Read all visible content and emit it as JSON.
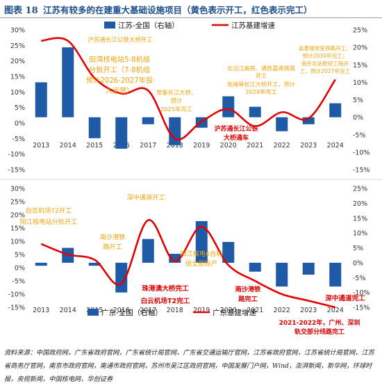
{
  "header": {
    "figure_label": "图表 18",
    "title": "江苏有较多的在建重大基础设施项目（黄色表示开工，红色表示完工）"
  },
  "source_note": "资料来源：中国政府网，广东省政府官网，广东省统计局官网，广东省交通运输厅官网，江苏省政府官网，江苏省统计局官网，江苏省商务厅官网，南京市政府官网，南通市政府官网，苏州市吴江区政府官网，中国发展门户网，Wind，澎湃新闻，新华网，环球时报，央视新闻，中国核电网，华创证券",
  "colors": {
    "bar": "#1e5aa6",
    "line": "#e10000",
    "start": "#f0a30a",
    "complete": "#e00000"
  },
  "chart_data": [
    {
      "type": "bar+line",
      "region": "jiangsu",
      "categories": [
        "2013",
        "2014",
        "2015",
        "2016",
        "2017",
        "2018",
        "2019",
        "2020",
        "2021",
        "2022",
        "2023",
        "2024"
      ],
      "series": [
        {
          "name": "江苏-全国（右轴）",
          "type": "bar",
          "axis": "right",
          "values": [
            10,
            20,
            -6,
            -9,
            -2,
            -8,
            -3,
            6,
            3,
            -4,
            -2,
            4
          ]
        },
        {
          "name": "江苏基建增速",
          "type": "line",
          "axis": "left",
          "values": [
            26.5,
            26.5,
            14.5,
            9.5,
            10.5,
            -5,
            0.5,
            4.5,
            -1,
            3.5,
            1.5,
            14
          ]
        }
      ],
      "y_left": {
        "min": -15,
        "max": 30,
        "ticks": [
          "30%",
          "25%",
          "20%",
          "15%",
          "10%",
          "5%",
          "0%",
          "-5%",
          "-10%",
          "-15%"
        ]
      },
      "y_right": {
        "min": -15,
        "max": 25,
        "ticks": [
          "25%",
          "20%",
          "15%",
          "10%",
          "5%",
          "0%",
          "-5%",
          "-10%",
          "-15%"
        ]
      },
      "legend": {
        "position": "top"
      },
      "annotations": [
        {
          "text": "沪苏通长江公铁大桥开工",
          "status": "start"
        },
        {
          "text": "田湾核电站5-8机组分批开工（7-8机组预计2026-2027年投入运营）",
          "status": "start"
        },
        {
          "text": "常泰长江大桥、预计2025年完工",
          "status": "start"
        },
        {
          "text": "沪苏通长江公铁大桥通车",
          "status": "complete"
        },
        {
          "text": "北沿江高铁、通苏嘉甬铁路开工",
          "status": "start"
        },
        {
          "text": "张靖皋长江大桥开工，预计2028年完工",
          "status": "start"
        },
        {
          "text": "盐泰锡常宜铁路开工，预计2030年完工；南京北站枢纽工程开工，预计2027年完工",
          "status": "start"
        }
      ]
    },
    {
      "type": "bar+line",
      "region": "guangdong",
      "categories": [
        "2013",
        "2014",
        "2015",
        "2016",
        "2017",
        "2018",
        "2019",
        "2020",
        "2021",
        "2022",
        "2023",
        "2024"
      ],
      "series": [
        {
          "name": "广东-全国（右轴）",
          "type": "bar",
          "axis": "right",
          "values": [
            -1,
            5,
            -1,
            -10,
            8,
            3,
            14,
            7,
            -3,
            -8,
            -4,
            -8
          ]
        },
        {
          "name": "广东基建增速",
          "type": "line",
          "axis": "left",
          "values": [
            9,
            5,
            3,
            -6,
            18,
            2.5,
            15.5,
            1,
            -5,
            -10,
            -12.5,
            -15
          ]
        }
      ],
      "y_left": {
        "min": -15,
        "max": 30,
        "ticks": [
          "30%",
          "25%",
          "20%",
          "15%",
          "10%",
          "5%",
          "0%",
          "-5%",
          "-10%",
          "-15%"
        ]
      },
      "y_right": {
        "min": -15,
        "max": 25,
        "ticks": [
          "25%",
          "20%",
          "15%",
          "10%",
          "5%",
          "0%",
          "-5%",
          "-10%",
          "-15%"
        ]
      },
      "legend": {
        "position": "bottom"
      },
      "annotations": [
        {
          "text": "白云机场T2开工",
          "status": "start"
        },
        {
          "text": "阳江核电站分批开工",
          "status": "start"
        },
        {
          "text": "深中通道开工",
          "status": "start"
        },
        {
          "text": "南沙港铁路开工",
          "status": "start"
        },
        {
          "text": "阳江核电6台机组全部投产",
          "status": "start"
        },
        {
          "text": "珠港澳大桥完工",
          "status": "complete"
        },
        {
          "text": "白云机场T2完工",
          "status": "complete"
        },
        {
          "text": "南沙港铁路完工",
          "status": "complete"
        },
        {
          "text": "深中通道完工",
          "status": "complete"
        },
        {
          "text": "2021-2022年，广州、深圳轨交部分线路完工",
          "status": "complete"
        }
      ]
    }
  ]
}
